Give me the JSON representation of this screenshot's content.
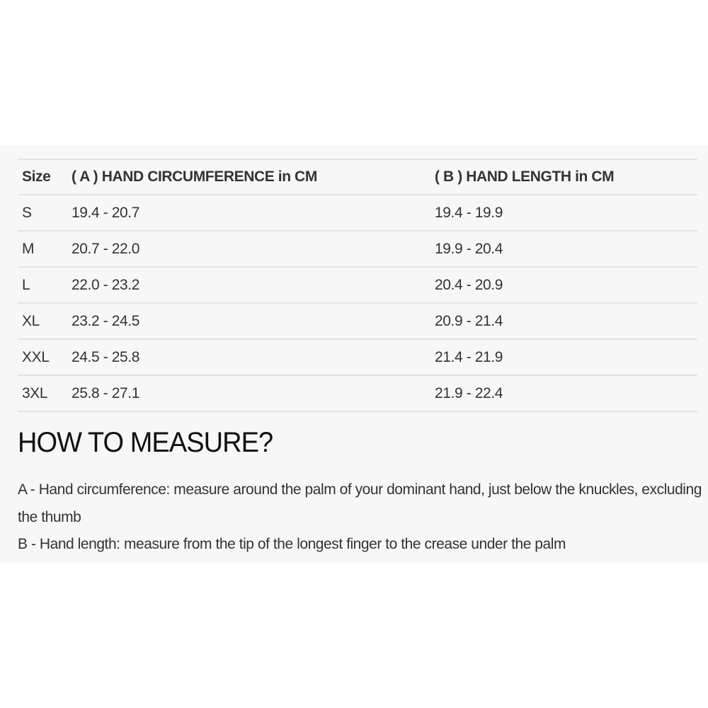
{
  "table": {
    "headers": [
      "Size",
      "( A ) HAND CIRCUMFERENCE in CM",
      "( B ) HAND LENGTH in CM"
    ],
    "rows": [
      [
        "S",
        "19.4 - 20.7",
        "19.4 - 19.9"
      ],
      [
        "M",
        "20.7 - 22.0",
        "19.9 - 20.4"
      ],
      [
        "L",
        "22.0 - 23.2",
        "20.4 - 20.9"
      ],
      [
        "XL",
        "23.2 - 24.5",
        "20.9 - 21.4"
      ],
      [
        "XXL",
        "24.5 - 25.8",
        "21.4 - 21.9"
      ],
      [
        "3XL",
        "25.8 - 27.1",
        "21.9 - 22.4"
      ]
    ]
  },
  "measure": {
    "title": "HOW TO MEASURE?",
    "a": "A - Hand circumference: measure around the palm of your dominant hand, just below the knuckles, excluding the thumb",
    "b": "B - Hand length: measure from the tip of the longest finger to the crease under the palm"
  }
}
